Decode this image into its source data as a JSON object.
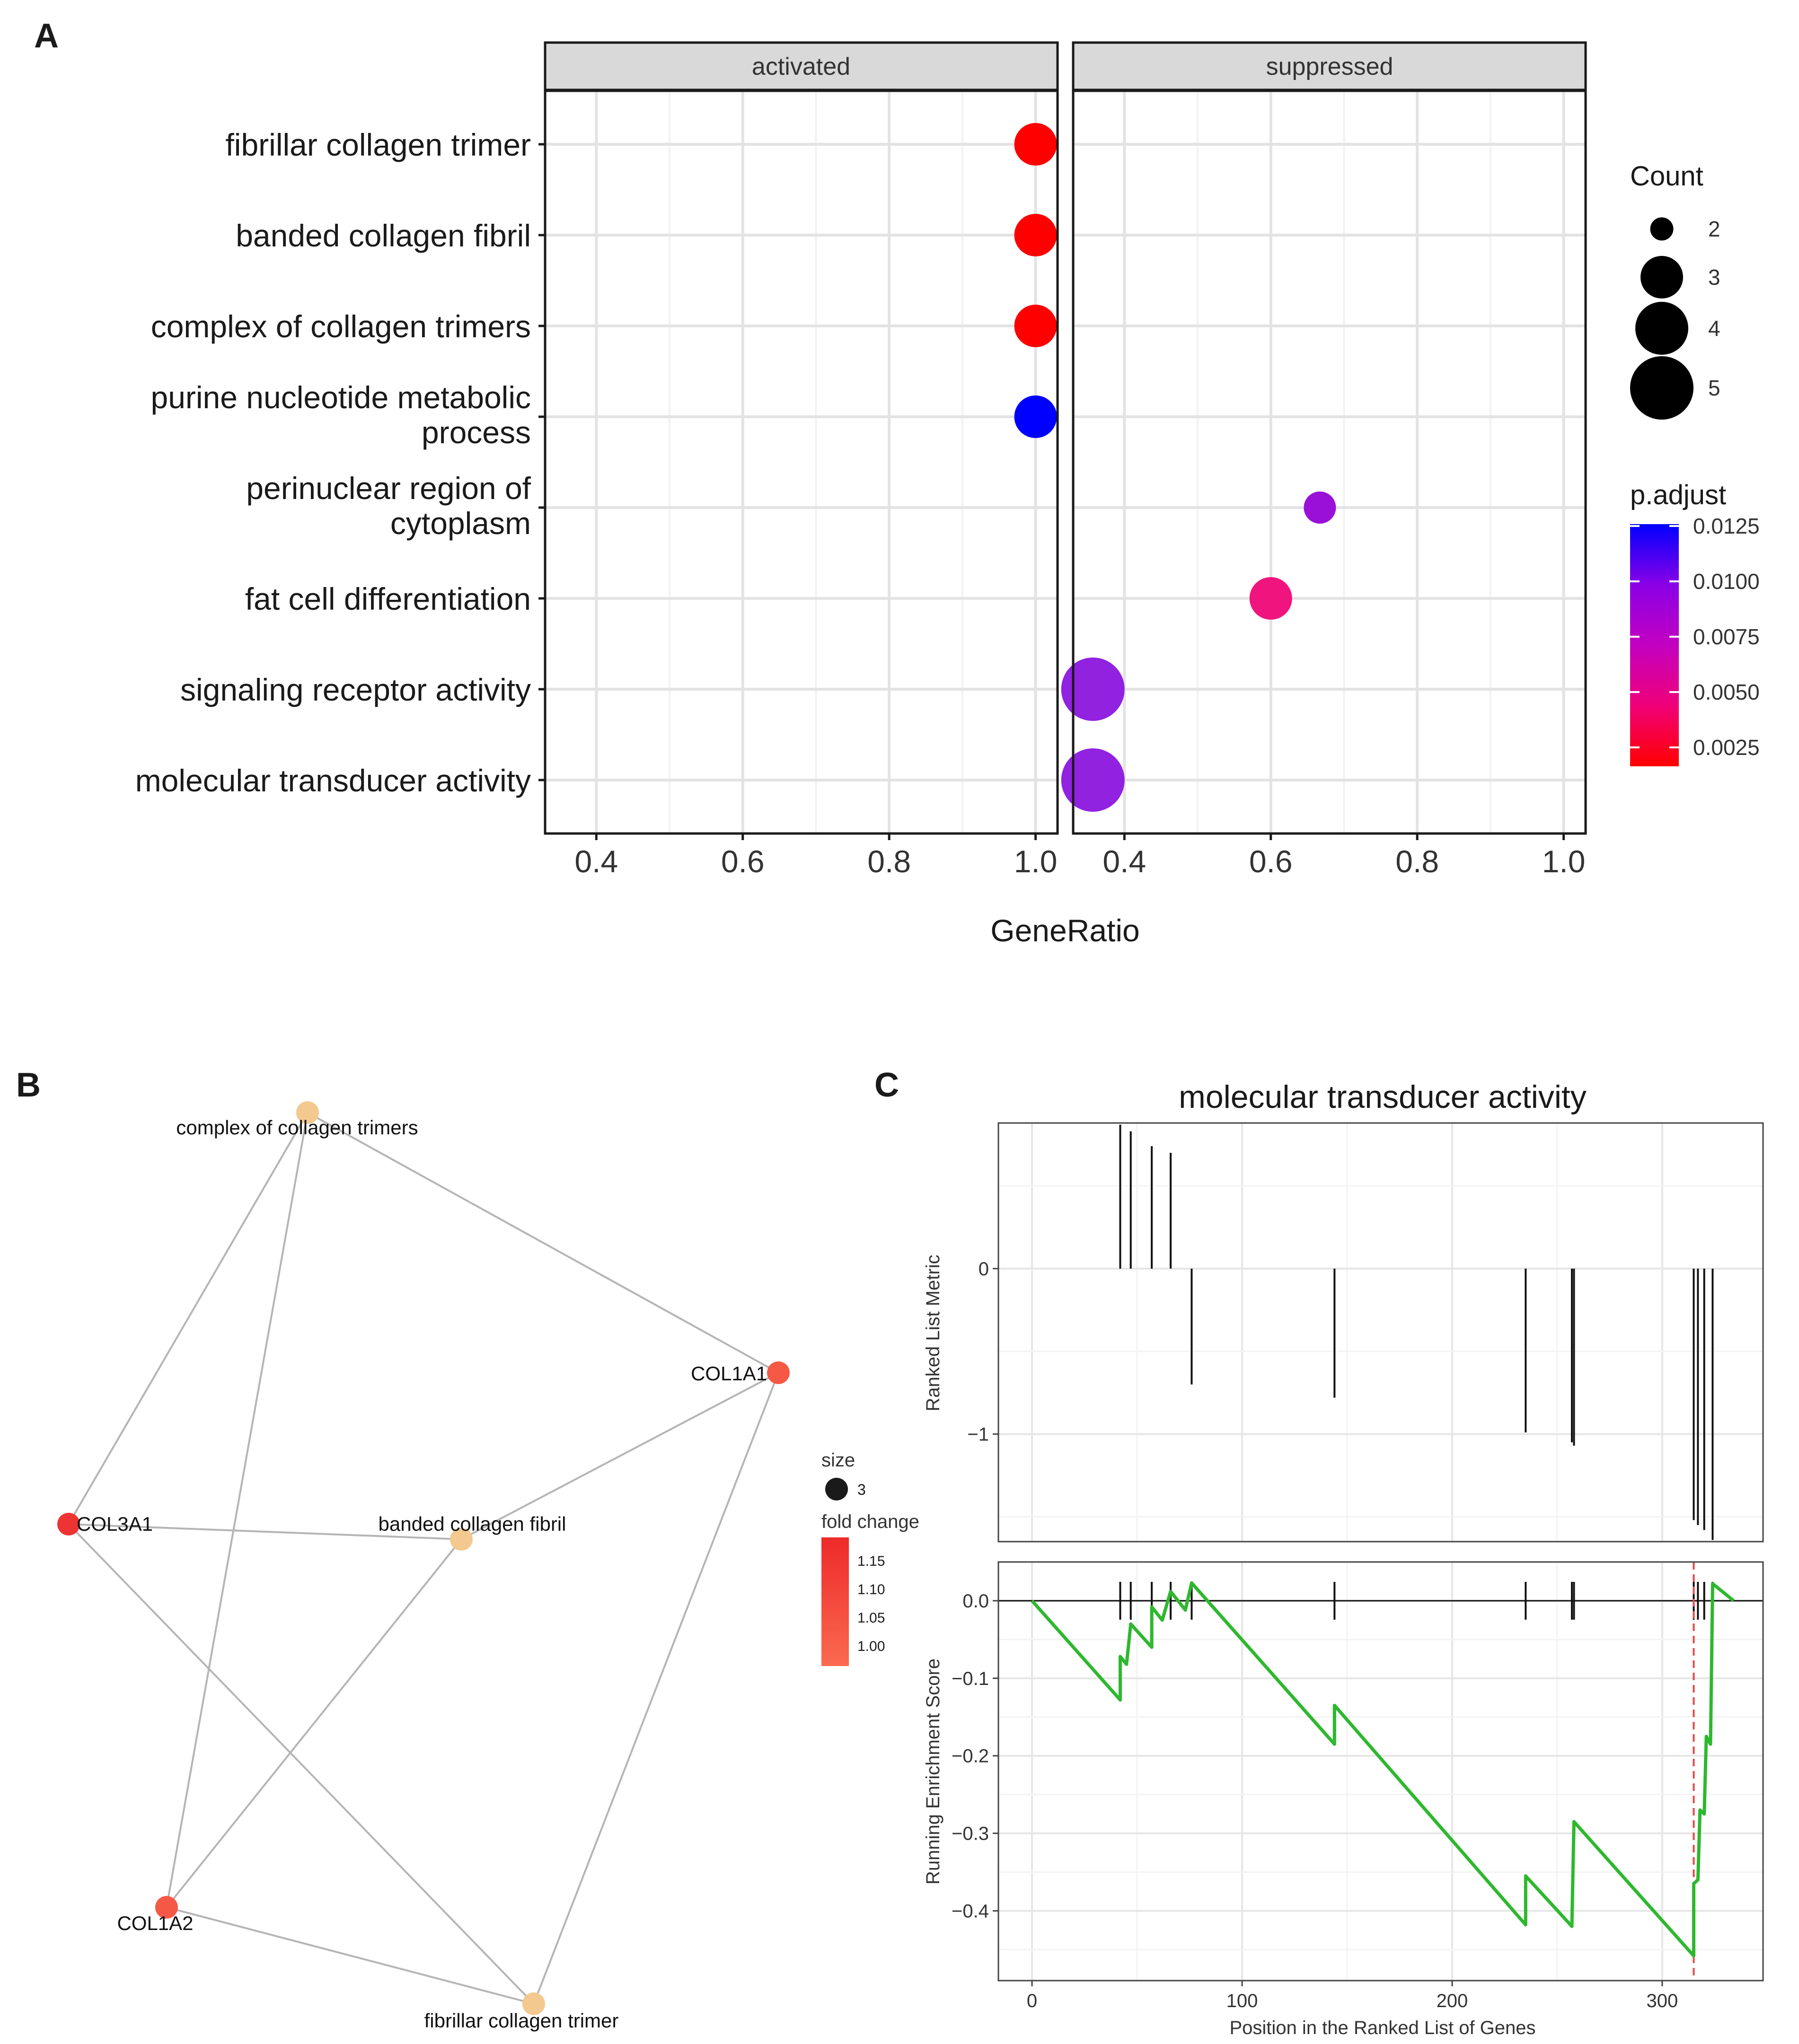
{
  "chart_data": [
    {
      "panel": "A",
      "type": "scatter",
      "title": "",
      "xlabel": "GeneRatio",
      "ylabel": "",
      "facets": [
        "activated",
        "suppressed"
      ],
      "xlim": [
        0.33,
        1.03
      ],
      "xticks": [
        "0.4",
        "0.6",
        "0.8",
        "1.0"
      ],
      "categories": [
        "fibrillar collagen trimer",
        "banded collagen fibril",
        "complex of collagen trimers",
        "purine nucleotide metabolic process",
        "perinuclear region of cytoplasm",
        "fat cell differentiation",
        "signaling receptor activity",
        "molecular transducer activity"
      ],
      "points": [
        {
          "facet": "activated",
          "term": "fibrillar collagen trimer",
          "x": 1.0,
          "count": 3,
          "padjust": 0.0025,
          "color": "#ff0000"
        },
        {
          "facet": "activated",
          "term": "banded collagen fibril",
          "x": 1.0,
          "count": 3,
          "padjust": 0.0025,
          "color": "#ff0000"
        },
        {
          "facet": "activated",
          "term": "complex of collagen trimers",
          "x": 1.0,
          "count": 3,
          "padjust": 0.0025,
          "color": "#ff0000"
        },
        {
          "facet": "activated",
          "term": "purine nucleotide metabolic process",
          "x": 1.0,
          "count": 3,
          "padjust": 0.0125,
          "color": "#0000ff"
        },
        {
          "facet": "suppressed",
          "term": "perinuclear region of cytoplasm",
          "x": 0.667,
          "count": 2,
          "padjust": 0.0105,
          "color": "#9a10d8"
        },
        {
          "facet": "suppressed",
          "term": "fat cell differentiation",
          "x": 0.6,
          "count": 3,
          "padjust": 0.0055,
          "color": "#f0157e"
        },
        {
          "facet": "suppressed",
          "term": "signaling receptor activity",
          "x": 0.357,
          "count": 5,
          "padjust": 0.011,
          "color": "#9022e0"
        },
        {
          "facet": "suppressed",
          "term": "molecular transducer activity",
          "x": 0.357,
          "count": 5,
          "padjust": 0.011,
          "color": "#9022e0"
        }
      ],
      "legend": {
        "size_title": "Count",
        "size_values": [
          "2",
          "3",
          "4",
          "5"
        ],
        "color_title": "p.adjust",
        "color_labels": [
          "0.0125",
          "0.0100",
          "0.0075",
          "0.0050",
          "0.0025"
        ],
        "color_low": "#ff0000",
        "color_high": "#0000ff"
      }
    },
    {
      "panel": "B",
      "type": "network",
      "nodes": [
        {
          "id": "complex of collagen trimers",
          "kind": "term",
          "color": "#f3c98f"
        },
        {
          "id": "COL1A1",
          "kind": "gene",
          "color": "#f55945"
        },
        {
          "id": "COL3A1",
          "kind": "gene",
          "color": "#ee3333"
        },
        {
          "id": "banded collagen fibril",
          "kind": "term",
          "color": "#f3c98f"
        },
        {
          "id": "COL1A2",
          "kind": "gene",
          "color": "#f55945"
        },
        {
          "id": "fibrillar collagen trimer",
          "kind": "term",
          "color": "#f3c98f"
        }
      ],
      "edges": [
        [
          "complex of collagen trimers",
          "COL1A1"
        ],
        [
          "complex of collagen trimers",
          "COL3A1"
        ],
        [
          "complex of collagen trimers",
          "COL1A2"
        ],
        [
          "banded collagen fibril",
          "COL1A1"
        ],
        [
          "banded collagen fibril",
          "COL3A1"
        ],
        [
          "banded collagen fibril",
          "COL1A2"
        ],
        [
          "fibrillar collagen trimer",
          "COL1A1"
        ],
        [
          "fibrillar collagen trimer",
          "COL3A1"
        ],
        [
          "fibrillar collagen trimer",
          "COL1A2"
        ]
      ],
      "legend": {
        "size_title": "size",
        "size_value": "3",
        "color_title": "fold change",
        "color_labels": [
          "1.15",
          "1.10",
          "1.05",
          "1.00"
        ]
      }
    },
    {
      "panel": "C",
      "type": "line",
      "title": "molecular transducer activity",
      "xlabel": "Position in the Ranked List of Genes",
      "top_ylabel": "Ranked List Metric",
      "bottom_ylabel": "Running Enrichment Score",
      "xlim": [
        -16,
        348
      ],
      "xticks": [
        "0",
        "100",
        "200",
        "300"
      ],
      "top_ylim": [
        -1.65,
        0.88
      ],
      "top_yticks": [
        "0",
        "−1"
      ],
      "bottom_ylim": [
        -0.49,
        0.05
      ],
      "bottom_yticks": [
        "0.0",
        "−0.1",
        "−0.2",
        "−0.3",
        "−0.4"
      ],
      "metric": [
        {
          "x": 42,
          "y": 0.87
        },
        {
          "x": 47,
          "y": 0.83
        },
        {
          "x": 57,
          "y": 0.74
        },
        {
          "x": 66,
          "y": 0.7
        },
        {
          "x": 76,
          "y": -0.7
        },
        {
          "x": 144,
          "y": -0.78
        },
        {
          "x": 235,
          "y": -0.99
        },
        {
          "x": 257,
          "y": -1.05
        },
        {
          "x": 258,
          "y": -1.07
        },
        {
          "x": 315,
          "y": -1.52
        },
        {
          "x": 317,
          "y": -1.55
        },
        {
          "x": 320,
          "y": -1.58
        },
        {
          "x": 324,
          "y": -1.64
        }
      ],
      "hits": [
        42,
        47,
        57,
        66,
        76,
        144,
        235,
        257,
        258,
        315,
        317,
        320,
        324
      ],
      "es_curve": [
        {
          "x": 0,
          "y": 0.0
        },
        {
          "x": 42,
          "y": -0.128
        },
        {
          "x": 42,
          "y": -0.072
        },
        {
          "x": 45,
          "y": -0.082
        },
        {
          "x": 47,
          "y": -0.03
        },
        {
          "x": 57,
          "y": -0.06
        },
        {
          "x": 57,
          "y": -0.008
        },
        {
          "x": 62,
          "y": -0.025
        },
        {
          "x": 66,
          "y": 0.012
        },
        {
          "x": 73,
          "y": -0.012
        },
        {
          "x": 76,
          "y": 0.023
        },
        {
          "x": 144,
          "y": -0.185
        },
        {
          "x": 144,
          "y": -0.135
        },
        {
          "x": 235,
          "y": -0.418
        },
        {
          "x": 235,
          "y": -0.355
        },
        {
          "x": 257,
          "y": -0.42
        },
        {
          "x": 258,
          "y": -0.285
        },
        {
          "x": 315,
          "y": -0.458
        },
        {
          "x": 315,
          "y": -0.365
        },
        {
          "x": 317,
          "y": -0.36
        },
        {
          "x": 318,
          "y": -0.27
        },
        {
          "x": 320,
          "y": -0.275
        },
        {
          "x": 321,
          "y": -0.175
        },
        {
          "x": 323,
          "y": -0.185
        },
        {
          "x": 324,
          "y": 0.022
        },
        {
          "x": 334,
          "y": 0.0
        }
      ],
      "max_deviation_x": 315,
      "line_color": "#2db82d",
      "marker_color": "#e64a4a"
    }
  ],
  "panels": {
    "a_letter": "A",
    "b_letter": "B",
    "c_letter": "C"
  },
  "labels_a": {
    "term_lines": [
      [
        "fibrillar collagen trimer"
      ],
      [
        "banded collagen fibril"
      ],
      [
        "complex of collagen trimers"
      ],
      [
        "purine nucleotide metabolic",
        "process"
      ],
      [
        "perinuclear region of",
        "cytoplasm"
      ],
      [
        "fat cell differentiation"
      ],
      [
        "signaling receptor activity"
      ],
      [
        "molecular transducer activity"
      ]
    ]
  }
}
